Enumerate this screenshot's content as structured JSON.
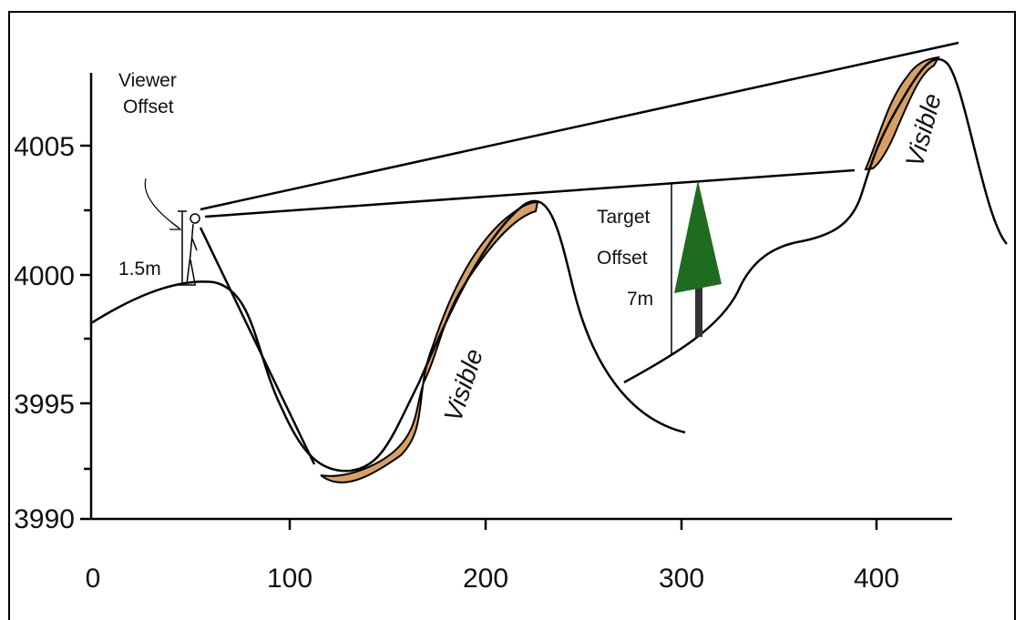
{
  "axes": {
    "x_ticks": [
      "0",
      "100",
      "200",
      "300",
      "400"
    ],
    "y_ticks": [
      "4005",
      "4000",
      "3995",
      "3990"
    ]
  },
  "labels": {
    "viewer_offset": [
      "Viewer",
      "Offset"
    ],
    "viewer_height": "1.5m",
    "target_offset": [
      "Target",
      "Offset"
    ],
    "target_height": "7m",
    "visible_1": "Visible",
    "visible_2": "Visible"
  }
}
